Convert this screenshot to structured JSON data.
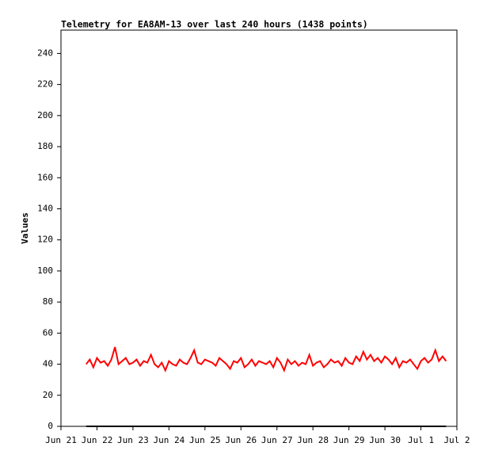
{
  "chart_data": {
    "type": "line",
    "title": "Telemetry for EA8AM-13 over last 240 hours (1438 points)",
    "y_label": "Values",
    "xlim": [
      0,
      11
    ],
    "xticks": [
      {
        "value": 0,
        "label": "Jun 21"
      },
      {
        "value": 1,
        "label": "Jun 22"
      },
      {
        "value": 2,
        "label": "Jun 23"
      },
      {
        "value": 3,
        "label": "Jun 24"
      },
      {
        "value": 4,
        "label": "Jun 25"
      },
      {
        "value": 5,
        "label": "Jun 26"
      },
      {
        "value": 6,
        "label": "Jun 27"
      },
      {
        "value": 7,
        "label": "Jun 28"
      },
      {
        "value": 8,
        "label": "Jun 29"
      },
      {
        "value": 9,
        "label": "Jun 30"
      },
      {
        "value": 10,
        "label": "Jul 1"
      },
      {
        "value": 11,
        "label": "Jul 2"
      }
    ],
    "ylim": [
      0,
      255
    ],
    "yticks": [
      0,
      20,
      40,
      60,
      80,
      100,
      120,
      140,
      160,
      180,
      200,
      220,
      240
    ],
    "grid": false,
    "series": [
      {
        "color": "#ff0000",
        "x": [
          0.7,
          0.8,
          0.9,
          1.0,
          1.1,
          1.2,
          1.3,
          1.4,
          1.5,
          1.6,
          1.7,
          1.8,
          1.9,
          2.0,
          2.1,
          2.2,
          2.3,
          2.4,
          2.5,
          2.6,
          2.7,
          2.8,
          2.9,
          3.0,
          3.1,
          3.2,
          3.3,
          3.4,
          3.5,
          3.6,
          3.7,
          3.8,
          3.9,
          4.0,
          4.1,
          4.2,
          4.3,
          4.4,
          4.5,
          4.6,
          4.7,
          4.8,
          4.9,
          5.0,
          5.1,
          5.2,
          5.3,
          5.4,
          5.5,
          5.6,
          5.7,
          5.8,
          5.9,
          6.0,
          6.1,
          6.2,
          6.3,
          6.4,
          6.5,
          6.6,
          6.7,
          6.8,
          6.9,
          7.0,
          7.1,
          7.2,
          7.3,
          7.4,
          7.5,
          7.6,
          7.7,
          7.8,
          7.9,
          8.0,
          8.1,
          8.2,
          8.3,
          8.4,
          8.5,
          8.6,
          8.7,
          8.8,
          8.9,
          9.0,
          9.1,
          9.2,
          9.3,
          9.4,
          9.5,
          9.6,
          9.7,
          9.8,
          9.9,
          10.0,
          10.1,
          10.2,
          10.3,
          10.4,
          10.5,
          10.6,
          10.7
        ],
        "values": [
          40,
          43,
          38,
          44,
          41,
          42,
          39,
          43,
          51,
          40,
          42,
          44,
          40,
          41,
          43,
          39,
          42,
          41,
          46,
          40,
          38,
          41,
          36,
          42,
          40,
          39,
          43,
          41,
          40,
          44,
          49,
          41,
          40,
          43,
          42,
          41,
          39,
          44,
          42,
          40,
          37,
          42,
          41,
          44,
          38,
          40,
          43,
          39,
          42,
          41,
          40,
          42,
          38,
          44,
          41,
          36,
          43,
          40,
          42,
          39,
          41,
          40,
          46,
          39,
          41,
          42,
          38,
          40,
          43,
          41,
          42,
          39,
          44,
          41,
          40,
          45,
          42,
          48,
          43,
          46,
          42,
          44,
          41,
          45,
          43,
          40,
          44,
          38,
          42,
          41,
          43,
          40,
          37,
          42,
          44,
          41,
          43,
          49,
          42,
          45,
          42
        ]
      },
      {
        "color": "#000000",
        "x": [
          0.7,
          10.7
        ],
        "values": [
          0,
          0
        ]
      }
    ]
  }
}
